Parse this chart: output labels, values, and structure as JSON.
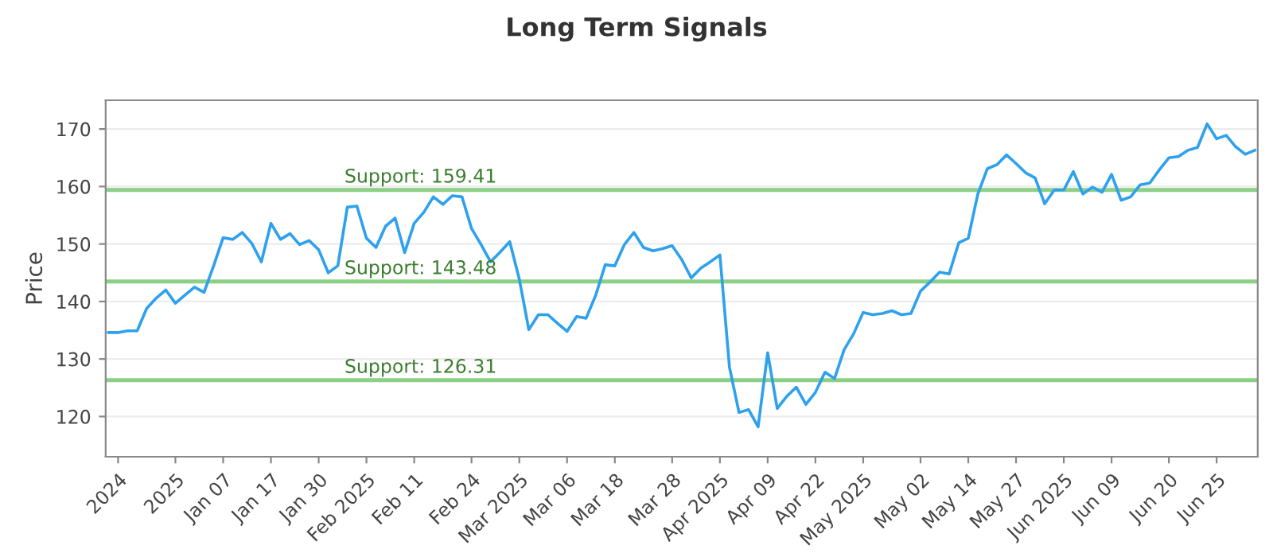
{
  "chart_data": {
    "type": "line",
    "title": "Long Term Signals",
    "ylabel": "Price",
    "categories": [
      null,
      "2024",
      null,
      null,
      null,
      null,
      null,
      "2025",
      null,
      null,
      null,
      null,
      "Jan 07",
      null,
      null,
      null,
      null,
      "Jan 17",
      null,
      null,
      null,
      null,
      "Jan 30",
      null,
      null,
      null,
      null,
      "Feb 2025",
      null,
      null,
      null,
      null,
      "Feb 11",
      null,
      null,
      null,
      null,
      null,
      "Feb 24",
      null,
      null,
      null,
      null,
      "Mar 2025",
      null,
      null,
      null,
      null,
      "Mar 06",
      null,
      null,
      null,
      null,
      "Mar 18",
      null,
      null,
      null,
      null,
      null,
      "Mar 28",
      null,
      null,
      null,
      null,
      "Apr 2025",
      null,
      null,
      null,
      null,
      "Apr 09",
      null,
      null,
      null,
      null,
      "Apr 22",
      null,
      null,
      null,
      null,
      "May 2025",
      null,
      null,
      null,
      null,
      null,
      "May 02",
      null,
      null,
      null,
      null,
      "May 14",
      null,
      null,
      null,
      null,
      "May 27",
      null,
      null,
      null,
      null,
      "Jun 2025",
      null,
      null,
      null,
      null,
      "Jun 09",
      null,
      null,
      null,
      null,
      null,
      "Jun 20",
      null,
      null,
      null,
      null,
      "Jun 25",
      null,
      null,
      null,
      null
    ],
    "series": [
      {
        "color": "#2ea1ee",
        "values": [
          134.6,
          134.6,
          134.9,
          134.9,
          138.8,
          140.6,
          142.0,
          139.7,
          141.1,
          142.5,
          141.6,
          146.2,
          151.1,
          150.8,
          152.0,
          150.1,
          146.9,
          153.6,
          150.8,
          151.8,
          149.9,
          150.6,
          149.0,
          145.0,
          146.2,
          156.4,
          156.6,
          151.0,
          149.4,
          153.1,
          154.5,
          148.5,
          153.6,
          155.5,
          158.2,
          156.9,
          158.4,
          158.2,
          152.7,
          149.9,
          146.9,
          148.6,
          150.4,
          143.9,
          135.1,
          137.7,
          137.7,
          136.2,
          134.8,
          137.4,
          137.1,
          141.1,
          146.4,
          146.2,
          149.9,
          152.0,
          149.4,
          148.8,
          149.2,
          149.7,
          147.3,
          144.1,
          145.8,
          146.9,
          148.1,
          128.6,
          120.7,
          121.2,
          118.2,
          131.1,
          121.4,
          123.5,
          125.1,
          122.1,
          124.2,
          127.7,
          126.6,
          131.6,
          134.4,
          138.1,
          137.7,
          137.9,
          138.4,
          137.7,
          137.9,
          141.8,
          143.4,
          145.1,
          144.8,
          150.2,
          151.0,
          158.7,
          163.1,
          163.8,
          165.5,
          164.0,
          162.4,
          161.5,
          157.0,
          159.4,
          159.4,
          162.6,
          158.7,
          159.9,
          159.0,
          162.1,
          157.6,
          158.2,
          160.3,
          160.6,
          162.9,
          165.0,
          165.2,
          166.3,
          166.8,
          170.9,
          168.3,
          168.9,
          166.9,
          165.6,
          166.3
        ]
      }
    ],
    "ylim": [
      113,
      175
    ],
    "yticks": [
      120,
      130,
      140,
      150,
      160,
      170
    ],
    "grid": "y",
    "ref_lines": [
      {
        "axis": "y",
        "value": 159.41,
        "label": "Support: 159.41",
        "color": "#8ccf86"
      },
      {
        "axis": "y",
        "value": 143.48,
        "label": "Support: 143.48",
        "color": "#8ccf86"
      },
      {
        "axis": "y",
        "value": 126.31,
        "label": "Support: 126.31",
        "color": "#8ccf86"
      }
    ]
  }
}
